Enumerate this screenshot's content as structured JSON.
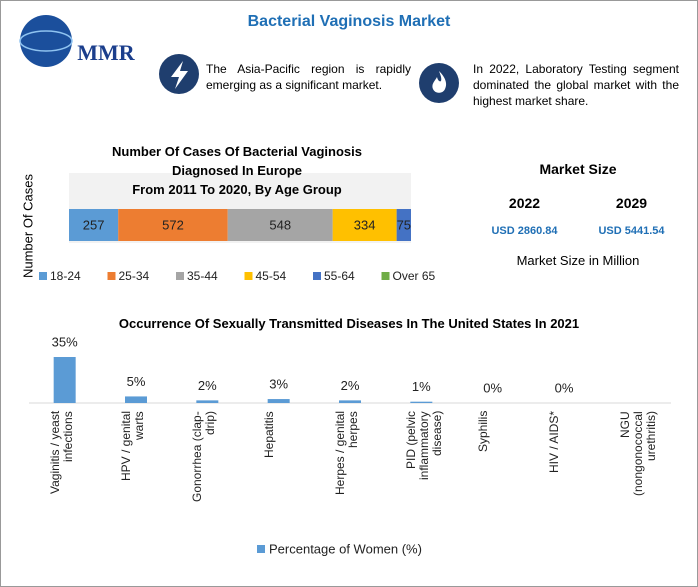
{
  "title": "Bacterial Vaginosis Market",
  "logo": "MMR",
  "highlights": [
    "The Asia-Pacific region is rapidly emerging as a significant market.",
    "In 2022, Laboratory Testing segment dominated the global market with the highest market share."
  ],
  "market_size": {
    "title": "Market Size",
    "items": [
      {
        "year": "2022",
        "value": "USD 2860.84"
      },
      {
        "year": "2029",
        "value": "USD 5441.54"
      }
    ],
    "note": "Market Size in Million"
  },
  "chart_data": [
    {
      "type": "stacked_bar",
      "title": "Number Of Cases Of Bacterial Vaginosis Diagnosed In Europe",
      "subtitle": "From 2011 To 2020, By Age Group",
      "ylabel": "Number Of Cases",
      "series": [
        {
          "name": "18-24",
          "color": "#5b9bd5",
          "values": [
            257
          ]
        },
        {
          "name": "25-34",
          "color": "#ed7d31",
          "values": [
            572
          ]
        },
        {
          "name": "35-44",
          "color": "#a5a5a5",
          "values": [
            548
          ]
        },
        {
          "name": "45-54",
          "color": "#ffc000",
          "values": [
            334
          ]
        },
        {
          "name": "55-64",
          "color": "#4472c4",
          "values": [
            75
          ]
        },
        {
          "name": "Over 65",
          "color": "#70ad47",
          "values": [
            0
          ]
        }
      ]
    },
    {
      "type": "bar",
      "title": "Occurrence Of Sexually Transmitted Diseases In The United States In 2021",
      "categories": [
        "Vaginitis / yeast infections",
        "HPV / genital warts",
        "Gonorrhea (clap-drip)",
        "Hepatitis",
        "Herpes / genital herpes",
        "PID (pelvic inflammatory disease)",
        "Syphilis",
        "HIV / AIDS*",
        "NGU (nongonococcal urethritis)"
      ],
      "series": [
        {
          "name": "Percentage of Women (%)",
          "color": "#5b9bd5",
          "values": [
            35,
            5,
            2,
            3,
            2,
            1,
            0,
            0,
            0
          ],
          "value_labels": [
            "35%",
            "5%",
            "2%",
            "3%",
            "2%",
            "1%",
            "0%",
            "0%",
            null
          ]
        }
      ],
      "ylim": [
        0,
        35
      ]
    }
  ]
}
